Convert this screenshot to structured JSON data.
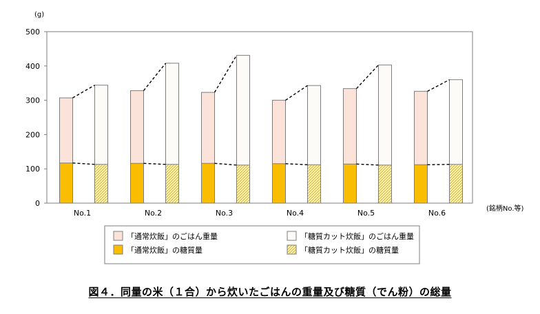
{
  "chart_data": {
    "type": "bar",
    "y_unit": "(g)",
    "x_unit": "(銘柄No.等)",
    "ylim": [
      0,
      500
    ],
    "yticks": [
      0,
      100,
      200,
      300,
      400,
      500
    ],
    "categories": [
      "No.1",
      "No.2",
      "No.3",
      "No.4",
      "No.5",
      "No.6"
    ],
    "series": [
      {
        "name": "「通常炊飯」のごはん重量",
        "values": [
          307,
          328,
          323,
          300,
          334,
          326
        ],
        "color": "#fbe3d9",
        "stroke": "#7d7d7d",
        "pattern": "solid"
      },
      {
        "name": "「糖質カット炊飯」のごはん重量",
        "values": [
          344,
          408,
          431,
          343,
          403,
          360
        ],
        "color": "#fdfbf8",
        "stroke": "#7d7d7d",
        "pattern": "solid"
      },
      {
        "name": "「通常炊飯」の糖質量",
        "values": [
          117,
          116,
          116,
          115,
          114,
          112
        ],
        "color": "#fbbd00",
        "stroke": "#7d7d7d",
        "pattern": "solid"
      },
      {
        "name": "「糖質カット炊飯」の糖質量",
        "values": [
          113,
          113,
          111,
          112,
          111,
          113
        ],
        "color": "#fff2a6",
        "stroke": "#7d7d7d",
        "pattern": "hatch"
      }
    ],
    "connectors": "dashed",
    "grid": false,
    "legend_position": "bottom"
  },
  "caption": "図４．同量の米（１合）から炊いたごはんの重量及び糖質（でん粉）の総量"
}
